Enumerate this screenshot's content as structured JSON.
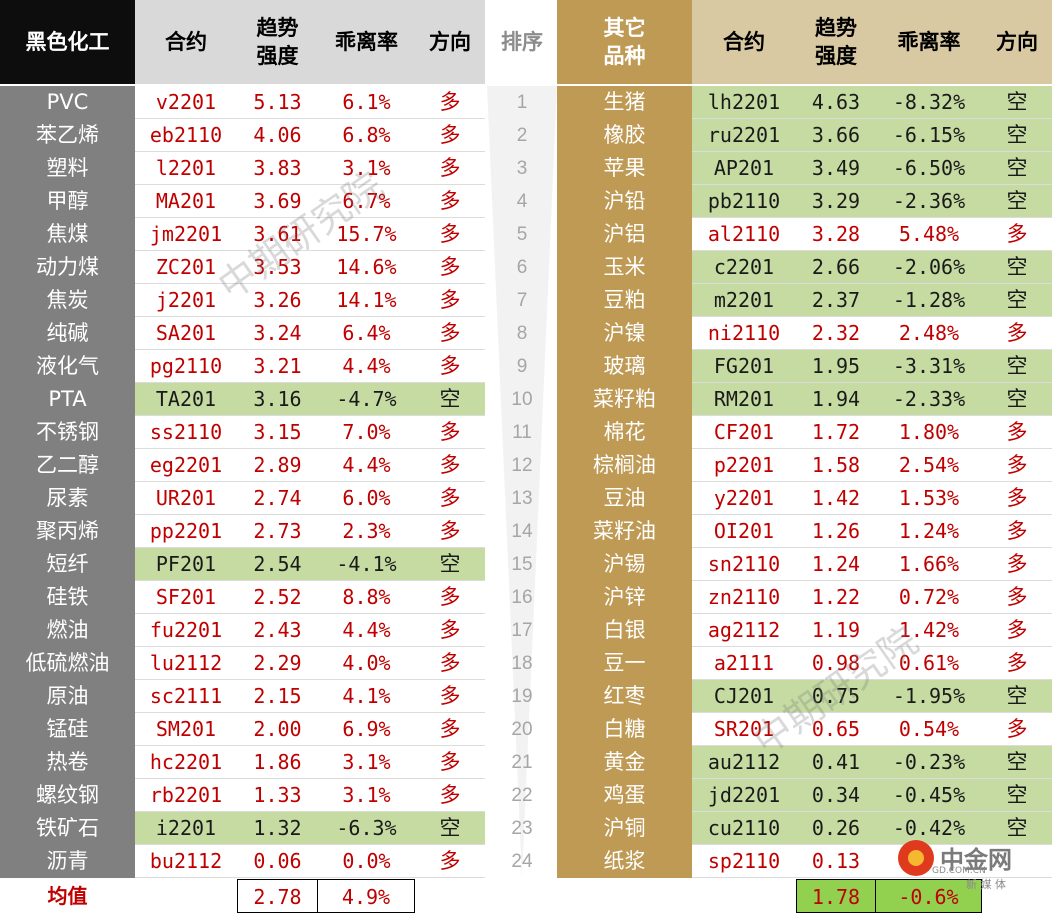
{
  "header_left": {
    "group": "黑色化工",
    "contract": "合约",
    "strength_1": "趋势",
    "strength_2": "强度",
    "deviation": "乖离率",
    "direction": "方向"
  },
  "header_rank": "排序",
  "header_right": {
    "group_1": "其它",
    "group_2": "品种",
    "contract": "合约",
    "strength_1": "趋势",
    "strength_2": "强度",
    "deviation": "乖离率",
    "direction": "方向"
  },
  "left_rows": [
    {
      "name": "PVC",
      "contract": "v2201",
      "strength": "5.13",
      "dev": "6.1%",
      "dir": "多"
    },
    {
      "name": "苯乙烯",
      "contract": "eb2110",
      "strength": "4.06",
      "dev": "6.8%",
      "dir": "多"
    },
    {
      "name": "塑料",
      "contract": "l2201",
      "strength": "3.83",
      "dev": "3.1%",
      "dir": "多"
    },
    {
      "name": "甲醇",
      "contract": "MA201",
      "strength": "3.69",
      "dev": "6.7%",
      "dir": "多"
    },
    {
      "name": "焦煤",
      "contract": "jm2201",
      "strength": "3.61",
      "dev": "15.7%",
      "dir": "多"
    },
    {
      "name": "动力煤",
      "contract": "ZC201",
      "strength": "3.53",
      "dev": "14.6%",
      "dir": "多"
    },
    {
      "name": "焦炭",
      "contract": "j2201",
      "strength": "3.26",
      "dev": "14.1%",
      "dir": "多"
    },
    {
      "name": "纯碱",
      "contract": "SA201",
      "strength": "3.24",
      "dev": "6.4%",
      "dir": "多"
    },
    {
      "name": "液化气",
      "contract": "pg2110",
      "strength": "3.21",
      "dev": "4.4%",
      "dir": "多"
    },
    {
      "name": "PTA",
      "contract": "TA201",
      "strength": "3.16",
      "dev": "-4.7%",
      "dir": "空"
    },
    {
      "name": "不锈钢",
      "contract": "ss2110",
      "strength": "3.15",
      "dev": "7.0%",
      "dir": "多"
    },
    {
      "name": "乙二醇",
      "contract": "eg2201",
      "strength": "2.89",
      "dev": "4.4%",
      "dir": "多"
    },
    {
      "name": "尿素",
      "contract": "UR201",
      "strength": "2.74",
      "dev": "6.0%",
      "dir": "多"
    },
    {
      "name": "聚丙烯",
      "contract": "pp2201",
      "strength": "2.73",
      "dev": "2.3%",
      "dir": "多"
    },
    {
      "name": "短纤",
      "contract": "PF201",
      "strength": "2.54",
      "dev": "-4.1%",
      "dir": "空"
    },
    {
      "name": "硅铁",
      "contract": "SF201",
      "strength": "2.52",
      "dev": "8.8%",
      "dir": "多"
    },
    {
      "name": "燃油",
      "contract": "fu2201",
      "strength": "2.43",
      "dev": "4.4%",
      "dir": "多"
    },
    {
      "name": "低硫燃油",
      "contract": "lu2112",
      "strength": "2.29",
      "dev": "4.0%",
      "dir": "多"
    },
    {
      "name": "原油",
      "contract": "sc2111",
      "strength": "2.15",
      "dev": "4.1%",
      "dir": "多"
    },
    {
      "name": "锰硅",
      "contract": "SM201",
      "strength": "2.00",
      "dev": "6.9%",
      "dir": "多"
    },
    {
      "name": "热卷",
      "contract": "hc2201",
      "strength": "1.86",
      "dev": "3.1%",
      "dir": "多"
    },
    {
      "name": "螺纹钢",
      "contract": "rb2201",
      "strength": "1.33",
      "dev": "3.1%",
      "dir": "多"
    },
    {
      "name": "铁矿石",
      "contract": "i2201",
      "strength": "1.32",
      "dev": "-6.3%",
      "dir": "空"
    },
    {
      "name": "沥青",
      "contract": "bu2112",
      "strength": "0.06",
      "dev": "0.0%",
      "dir": "多"
    }
  ],
  "ranks": [
    "1",
    "2",
    "3",
    "4",
    "5",
    "6",
    "7",
    "8",
    "9",
    "10",
    "11",
    "12",
    "13",
    "14",
    "15",
    "16",
    "17",
    "18",
    "19",
    "20",
    "21",
    "22",
    "23",
    "24"
  ],
  "right_rows": [
    {
      "name": "生猪",
      "contract": "lh2201",
      "strength": "4.63",
      "dev": "-8.32%",
      "dir": "空"
    },
    {
      "name": "橡胶",
      "contract": "ru2201",
      "strength": "3.66",
      "dev": "-6.15%",
      "dir": "空"
    },
    {
      "name": "苹果",
      "contract": "AP201",
      "strength": "3.49",
      "dev": "-6.50%",
      "dir": "空"
    },
    {
      "name": "沪铅",
      "contract": "pb2110",
      "strength": "3.29",
      "dev": "-2.36%",
      "dir": "空"
    },
    {
      "name": "沪铝",
      "contract": "al2110",
      "strength": "3.28",
      "dev": "5.48%",
      "dir": "多"
    },
    {
      "name": "玉米",
      "contract": "c2201",
      "strength": "2.66",
      "dev": "-2.06%",
      "dir": "空"
    },
    {
      "name": "豆粕",
      "contract": "m2201",
      "strength": "2.37",
      "dev": "-1.28%",
      "dir": "空"
    },
    {
      "name": "沪镍",
      "contract": "ni2110",
      "strength": "2.32",
      "dev": "2.48%",
      "dir": "多"
    },
    {
      "name": "玻璃",
      "contract": "FG201",
      "strength": "1.95",
      "dev": "-3.31%",
      "dir": "空"
    },
    {
      "name": "菜籽粕",
      "contract": "RM201",
      "strength": "1.94",
      "dev": "-2.33%",
      "dir": "空"
    },
    {
      "name": "棉花",
      "contract": "CF201",
      "strength": "1.72",
      "dev": "1.80%",
      "dir": "多"
    },
    {
      "name": "棕榈油",
      "contract": "p2201",
      "strength": "1.58",
      "dev": "2.54%",
      "dir": "多"
    },
    {
      "name": "豆油",
      "contract": "y2201",
      "strength": "1.42",
      "dev": "1.53%",
      "dir": "多"
    },
    {
      "name": "菜籽油",
      "contract": "OI201",
      "strength": "1.26",
      "dev": "1.24%",
      "dir": "多"
    },
    {
      "name": "沪锡",
      "contract": "sn2110",
      "strength": "1.24",
      "dev": "1.66%",
      "dir": "多"
    },
    {
      "name": "沪锌",
      "contract": "zn2110",
      "strength": "1.22",
      "dev": "0.72%",
      "dir": "多"
    },
    {
      "name": "白银",
      "contract": "ag2112",
      "strength": "1.19",
      "dev": "1.42%",
      "dir": "多"
    },
    {
      "name": "豆一",
      "contract": "a2111",
      "strength": "0.98",
      "dev": "0.61%",
      "dir": "多"
    },
    {
      "name": "红枣",
      "contract": "CJ201",
      "strength": "0.75",
      "dev": "-1.95%",
      "dir": "空"
    },
    {
      "name": "白糖",
      "contract": "SR201",
      "strength": "0.65",
      "dev": "0.54%",
      "dir": "多"
    },
    {
      "name": "黄金",
      "contract": "au2112",
      "strength": "0.41",
      "dev": "-0.23%",
      "dir": "空"
    },
    {
      "name": "鸡蛋",
      "contract": "jd2201",
      "strength": "0.34",
      "dev": "-0.45%",
      "dir": "空"
    },
    {
      "name": "沪铜",
      "contract": "cu2110",
      "strength": "0.26",
      "dev": "-0.42%",
      "dir": "空"
    },
    {
      "name": "纸浆",
      "contract": "sp2110",
      "strength": "0.13",
      "dev": "",
      "dir": ""
    }
  ],
  "footer": {
    "label": "均值",
    "left_strength": "2.78",
    "left_dev": "4.9%",
    "right_strength": "1.78",
    "right_dev": "-0.6%"
  },
  "watermark": "中期研究院",
  "logo": {
    "text": "中金网",
    "sub": "新 媒 体",
    "domain": "GD.COM.CN"
  },
  "colors": {
    "long": "#c00000",
    "short_bg": "#c5dba2",
    "left_name_bg": "#808080",
    "right_name_bg": "#bf9a55"
  }
}
